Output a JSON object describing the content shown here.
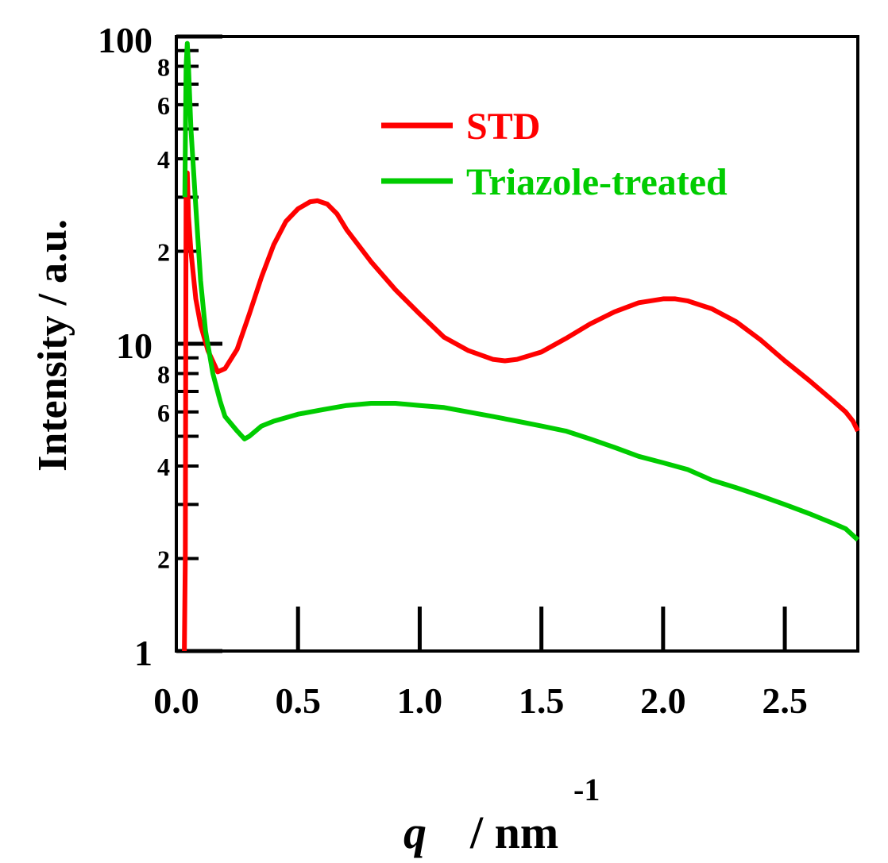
{
  "chart_data": {
    "type": "line",
    "title": "",
    "xlabel": "q",
    "xlabel_unit": "/ nm",
    "xlabel_unit_exp": "-1",
    "ylabel": "Intensity / a.u.",
    "xscale": "linear",
    "yscale": "log",
    "xlim": [
      0.0,
      2.8
    ],
    "ylim": [
      1,
      100
    ],
    "x_ticks": [
      0.0,
      0.5,
      1.0,
      1.5,
      2.0,
      2.5
    ],
    "x_tick_labels": [
      "0.0",
      "0.5",
      "1.0",
      "1.5",
      "2.0",
      "2.5"
    ],
    "y_major_ticks": [
      1,
      10,
      100
    ],
    "y_major_tick_labels": [
      "1",
      "10",
      "100"
    ],
    "y_minor_ticks": [
      2,
      3,
      4,
      5,
      6,
      7,
      8,
      9,
      20,
      30,
      40,
      50,
      60,
      70,
      80,
      90
    ],
    "y_minor_labeled": [
      2,
      4,
      6,
      8,
      20,
      40,
      60,
      80
    ],
    "y_minor_tick_labels": [
      "2",
      "4",
      "6",
      "8",
      "2",
      "4",
      "6",
      "8"
    ],
    "grid": false,
    "legend_position": "top-right",
    "series": [
      {
        "name": "STD",
        "color": "#ff0000",
        "x": [
          0.033,
          0.037,
          0.04,
          0.045,
          0.05,
          0.06,
          0.08,
          0.1,
          0.13,
          0.17,
          0.2,
          0.25,
          0.3,
          0.35,
          0.4,
          0.45,
          0.5,
          0.55,
          0.58,
          0.62,
          0.66,
          0.7,
          0.8,
          0.9,
          1.0,
          1.1,
          1.2,
          1.3,
          1.35,
          1.4,
          1.5,
          1.6,
          1.7,
          1.8,
          1.9,
          2.0,
          2.05,
          2.1,
          2.2,
          2.3,
          2.4,
          2.5,
          2.6,
          2.7,
          2.75,
          2.78,
          2.8
        ],
        "y": [
          1.0,
          2.0,
          32.0,
          36.0,
          26.0,
          20.0,
          14.0,
          11.5,
          9.5,
          8.1,
          8.3,
          9.6,
          12.5,
          16.5,
          21.0,
          25.0,
          27.5,
          29.0,
          29.2,
          28.5,
          26.5,
          23.5,
          18.5,
          15.0,
          12.5,
          10.5,
          9.5,
          8.9,
          8.8,
          8.9,
          9.4,
          10.4,
          11.6,
          12.7,
          13.6,
          14.0,
          14.0,
          13.8,
          13.0,
          11.8,
          10.3,
          8.8,
          7.6,
          6.5,
          6.0,
          5.6,
          5.2
        ]
      },
      {
        "name": "Triazole-treated",
        "color": "#00cc00",
        "x": [
          0.035,
          0.04,
          0.045,
          0.05,
          0.06,
          0.08,
          0.1,
          0.12,
          0.15,
          0.18,
          0.2,
          0.25,
          0.28,
          0.3,
          0.35,
          0.4,
          0.5,
          0.6,
          0.7,
          0.8,
          0.9,
          1.0,
          1.1,
          1.2,
          1.3,
          1.4,
          1.5,
          1.6,
          1.7,
          1.8,
          1.9,
          2.0,
          2.1,
          2.2,
          2.3,
          2.4,
          2.5,
          2.6,
          2.7,
          2.75,
          2.8
        ],
        "y": [
          30.0,
          80.0,
          95.0,
          80.0,
          50.0,
          28.0,
          16.0,
          11.0,
          8.0,
          6.5,
          5.8,
          5.2,
          4.9,
          5.0,
          5.4,
          5.6,
          5.9,
          6.1,
          6.3,
          6.4,
          6.4,
          6.3,
          6.2,
          6.0,
          5.8,
          5.6,
          5.4,
          5.2,
          4.9,
          4.6,
          4.3,
          4.1,
          3.9,
          3.6,
          3.4,
          3.2,
          3.0,
          2.8,
          2.6,
          2.5,
          2.3
        ]
      }
    ]
  }
}
